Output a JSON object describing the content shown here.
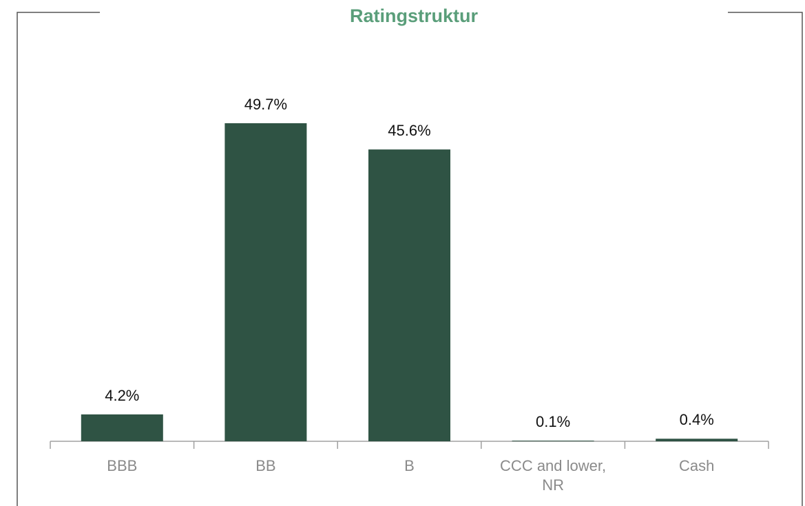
{
  "chart_data": {
    "type": "bar",
    "title": "Ratingstruktur",
    "categories": [
      "BBB",
      "BB",
      "B",
      "CCC and lower, NR",
      "Cash"
    ],
    "values": [
      4.2,
      49.7,
      45.6,
      0.1,
      0.4
    ],
    "value_labels": [
      "4.2%",
      "49.7%",
      "45.6%",
      "0.1%",
      "0.4%"
    ],
    "color": "#2f5344"
  }
}
